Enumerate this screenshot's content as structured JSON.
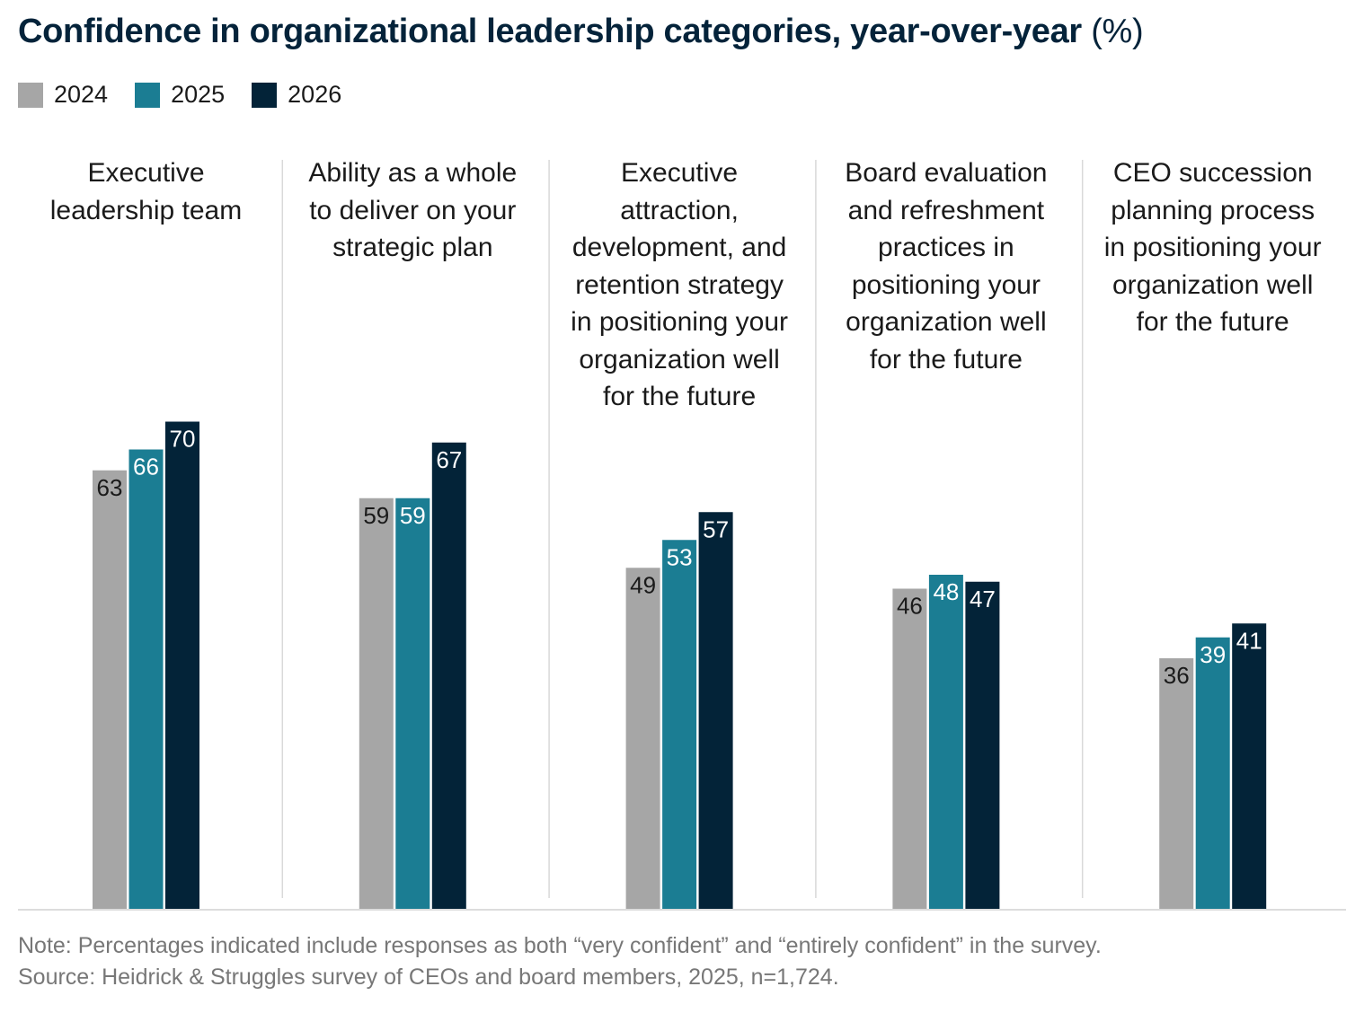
{
  "chart_data": {
    "type": "bar",
    "title": "Confidence in organizational leadership categories, year-over-year",
    "title_unit": "(%)",
    "categories": [
      "Executive\nleadership team",
      "Ability as a whole\nto deliver on your\nstrategic plan",
      "Executive\nattraction,\ndevelopment, and\nretention strategy\nin positioning your\norganization well\nfor the future",
      "Board evaluation\nand refreshment\npractices in\npositioning your\norganization well\nfor the future",
      "CEO succession\nplanning process\nin positioning your\norganization well\nfor the future"
    ],
    "series": [
      {
        "name": "2024",
        "color": "#a6a6a6",
        "label_color": "#1a1a1a",
        "values": [
          63,
          59,
          49,
          46,
          36
        ]
      },
      {
        "name": "2025",
        "color": "#1b7d93",
        "label_color": "#ffffff",
        "values": [
          66,
          59,
          53,
          48,
          39
        ]
      },
      {
        "name": "2026",
        "color": "#032338",
        "label_color": "#ffffff",
        "values": [
          70,
          67,
          57,
          47,
          41
        ]
      }
    ],
    "ylim": [
      0,
      100
    ],
    "grid": false,
    "legend": "top-left",
    "data_labels": true
  },
  "notes": {
    "note": "Note: Percentages indicated include responses as both “very confident” and “entirely confident” in the survey.",
    "source": "Source: Heidrick & Struggles survey of CEOs and board members, 2025, n=1,724."
  }
}
